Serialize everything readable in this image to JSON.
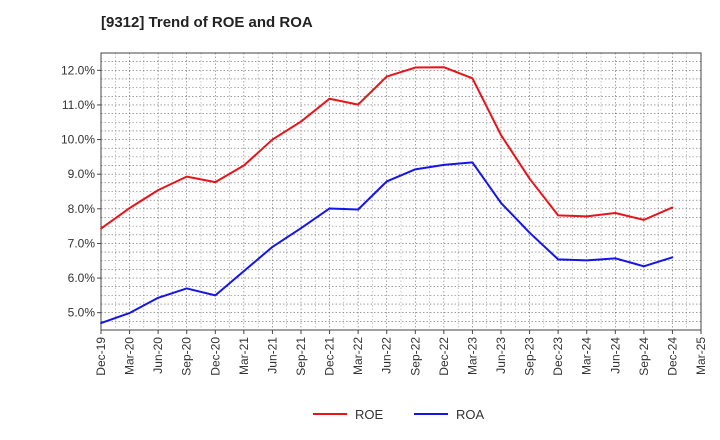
{
  "chart_data": {
    "type": "line",
    "title": "[9312]  Trend of ROE and ROA",
    "x": [
      "Dec-19",
      "Mar-20",
      "Jun-20",
      "Sep-20",
      "Dec-20",
      "Mar-21",
      "Jun-21",
      "Sep-21",
      "Dec-21",
      "Mar-22",
      "Jun-22",
      "Sep-22",
      "Dec-22",
      "Mar-23",
      "Jun-23",
      "Sep-23",
      "Dec-23",
      "Mar-24",
      "Jun-24",
      "Sep-24",
      "Dec-24",
      "Mar-25"
    ],
    "y_ticks": [
      "5.0%",
      "6.0%",
      "7.0%",
      "8.0%",
      "9.0%",
      "10.0%",
      "11.0%",
      "12.0%"
    ],
    "ylim": [
      4.5,
      12.5
    ],
    "series": [
      {
        "name": "ROE",
        "color": "#e8141b",
        "values": [
          7.43,
          8.02,
          8.54,
          8.93,
          8.77,
          9.25,
          10.0,
          10.52,
          11.18,
          11.01,
          11.82,
          12.08,
          12.09,
          11.77,
          10.13,
          8.87,
          7.81,
          7.78,
          7.88,
          7.68,
          8.04,
          null
        ]
      },
      {
        "name": "ROA",
        "color": "#1515e6",
        "values": [
          4.7,
          4.99,
          5.43,
          5.7,
          5.5,
          6.2,
          6.9,
          7.44,
          8.01,
          7.98,
          8.79,
          9.14,
          9.27,
          9.34,
          8.17,
          7.31,
          6.54,
          6.51,
          6.57,
          6.34,
          6.6,
          null
        ]
      }
    ],
    "grid": true,
    "legend_position": "bottom"
  }
}
